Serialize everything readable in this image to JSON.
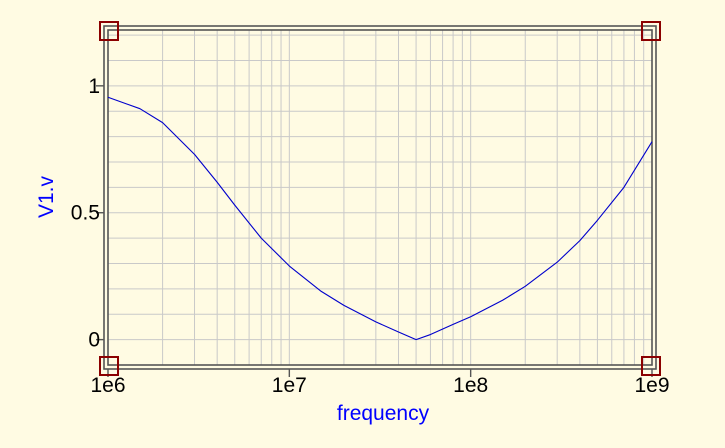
{
  "chart_data": {
    "type": "line",
    "xscale": "log",
    "xlim": [
      1000000,
      1000000000
    ],
    "ylim": [
      -0.1,
      1.22
    ],
    "xlabel": "frequency",
    "ylabel": "V1.v",
    "xtick_labels": [
      "1e6",
      "1e7",
      "1e8",
      "1e9"
    ],
    "xtick_values": [
      1000000,
      10000000,
      100000000,
      1000000000
    ],
    "ytick_labels": [
      "0",
      "0.5",
      "1"
    ],
    "ytick_values": [
      0,
      0.5,
      1
    ],
    "grid": true,
    "colors": {
      "background": "#fffbe3",
      "grid": "#c9c9c9",
      "frame": "#555555",
      "line": "#0000cc",
      "label": "#0000ff",
      "marker": "#8b0000"
    },
    "series": [
      {
        "x": [
          1000000,
          1500000,
          2000000,
          3000000,
          4000000,
          5000000,
          7000000,
          10000000,
          15000000,
          20000000,
          30000000,
          40000000,
          50000000,
          60000000,
          80000000,
          100000000,
          150000000,
          200000000,
          300000000,
          400000000,
          500000000,
          700000000,
          1000000000
        ],
        "y": [
          0.955,
          0.91,
          0.855,
          0.73,
          0.62,
          0.53,
          0.4,
          0.29,
          0.19,
          0.135,
          0.07,
          0.03,
          0.0,
          0.02,
          0.06,
          0.09,
          0.155,
          0.21,
          0.305,
          0.39,
          0.47,
          0.6,
          0.78
        ]
      }
    ]
  }
}
